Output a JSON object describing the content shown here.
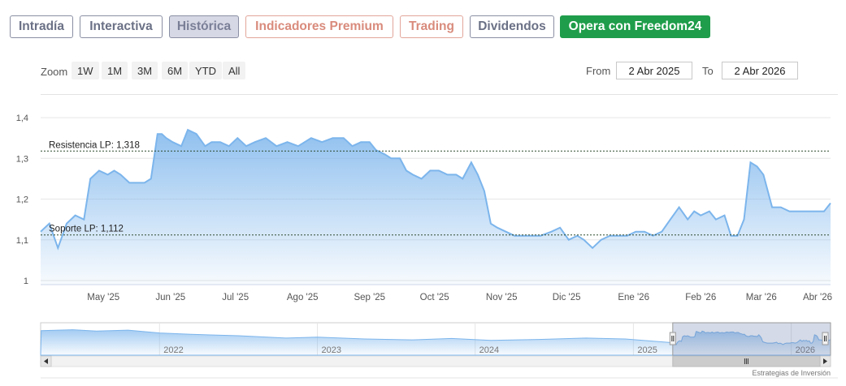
{
  "tabs": [
    {
      "label": "Intradía",
      "style": "gray"
    },
    {
      "label": "Interactiva",
      "style": "gray"
    },
    {
      "label": "Histórica",
      "style": "active"
    },
    {
      "label": "Indicadores Premium",
      "style": "red"
    },
    {
      "label": "Trading",
      "style": "red"
    },
    {
      "label": "Dividendos",
      "style": "gray"
    },
    {
      "label": "Opera con Freedom24",
      "style": "green"
    }
  ],
  "toolbar": {
    "zoom_label": "Zoom",
    "zoom_buttons": [
      "1W",
      "1M",
      "3M",
      "6M",
      "YTD",
      "All"
    ],
    "from_label": "From",
    "from_value": "2 Abr 2025",
    "to_label": "To",
    "to_value": "2 Abr 2026"
  },
  "colors": {
    "line": "#7cb5ec",
    "area_top": "#7cb5ec",
    "tab_green": "#1f9d4a",
    "tab_red": "#d98b7c",
    "tab_gray": "#6b7186"
  },
  "chart_data": {
    "type": "area",
    "y_ticks": [
      "1,4",
      "1,3",
      "1,2",
      "1,1",
      "1"
    ],
    "ylim": [
      0.99,
      1.43
    ],
    "x_ticks": [
      "May '25",
      "Jun '25",
      "Jul '25",
      "Ago '25",
      "Sep '25",
      "Oct '25",
      "Nov '25",
      "Dic '25",
      "Ene '26",
      "Feb '26",
      "Mar '26",
      "Abr '26"
    ],
    "grid": true,
    "series": [
      {
        "x": [
          "2025-04-02",
          "2025-04-06",
          "2025-04-08",
          "2025-04-10",
          "2025-04-14",
          "2025-04-18",
          "2025-04-22",
          "2025-04-25",
          "2025-04-29",
          "2025-05-03",
          "2025-05-06",
          "2025-05-09",
          "2025-05-13",
          "2025-05-16",
          "2025-05-20",
          "2025-05-23",
          "2025-05-26",
          "2025-05-28",
          "2025-05-30",
          "2025-06-02",
          "2025-06-06",
          "2025-06-09",
          "2025-06-13",
          "2025-06-17",
          "2025-06-20",
          "2025-06-24",
          "2025-06-28",
          "2025-07-02",
          "2025-07-06",
          "2025-07-10",
          "2025-07-15",
          "2025-07-20",
          "2025-07-25",
          "2025-07-30",
          "2025-08-05",
          "2025-08-10",
          "2025-08-15",
          "2025-08-20",
          "2025-08-24",
          "2025-08-28",
          "2025-09-01",
          "2025-09-04",
          "2025-09-08",
          "2025-09-11",
          "2025-09-15",
          "2025-09-18",
          "2025-09-21",
          "2025-09-25",
          "2025-09-29",
          "2025-10-03",
          "2025-10-07",
          "2025-10-11",
          "2025-10-14",
          "2025-10-18",
          "2025-10-21",
          "2025-10-24",
          "2025-10-27",
          "2025-10-30",
          "2025-11-03",
          "2025-11-07",
          "2025-11-11",
          "2025-11-15",
          "2025-11-19",
          "2025-11-24",
          "2025-11-28",
          "2025-12-02",
          "2025-12-06",
          "2025-12-09",
          "2025-12-13",
          "2025-12-17",
          "2025-12-21",
          "2025-12-25",
          "2025-12-29",
          "2026-01-02",
          "2026-01-06",
          "2026-01-10",
          "2026-01-14",
          "2026-01-18",
          "2026-01-22",
          "2026-01-26",
          "2026-01-29",
          "2026-02-01",
          "2026-02-05",
          "2026-02-08",
          "2026-02-12",
          "2026-02-15",
          "2026-02-18",
          "2026-02-21",
          "2026-02-24",
          "2026-02-27",
          "2026-03-02",
          "2026-03-06",
          "2026-03-10",
          "2026-03-14",
          "2026-03-18",
          "2026-03-22",
          "2026-03-26",
          "2026-03-30",
          "2026-04-02"
        ],
        "values": [
          1.12,
          1.14,
          1.11,
          1.08,
          1.14,
          1.16,
          1.15,
          1.25,
          1.27,
          1.26,
          1.27,
          1.26,
          1.24,
          1.24,
          1.24,
          1.25,
          1.36,
          1.36,
          1.35,
          1.34,
          1.33,
          1.37,
          1.36,
          1.33,
          1.34,
          1.34,
          1.33,
          1.35,
          1.33,
          1.34,
          1.35,
          1.33,
          1.34,
          1.33,
          1.35,
          1.34,
          1.35,
          1.35,
          1.33,
          1.34,
          1.34,
          1.32,
          1.31,
          1.3,
          1.3,
          1.27,
          1.26,
          1.25,
          1.27,
          1.27,
          1.26,
          1.26,
          1.25,
          1.29,
          1.26,
          1.22,
          1.14,
          1.13,
          1.12,
          1.11,
          1.11,
          1.11,
          1.11,
          1.12,
          1.13,
          1.1,
          1.11,
          1.1,
          1.08,
          1.1,
          1.11,
          1.11,
          1.11,
          1.12,
          1.12,
          1.11,
          1.12,
          1.15,
          1.18,
          1.15,
          1.17,
          1.16,
          1.17,
          1.15,
          1.16,
          1.11,
          1.11,
          1.15,
          1.29,
          1.28,
          1.26,
          1.18,
          1.18,
          1.17,
          1.17,
          1.17,
          1.17,
          1.17,
          1.19
        ]
      }
    ],
    "reference_lines": [
      {
        "label": "Resistencia LP: 1,318",
        "value": 1.318
      },
      {
        "label": "Soporte LP: 1,112",
        "value": 1.112
      }
    ],
    "navigator": {
      "x_ticks": [
        "2022",
        "2023",
        "2024",
        "2025",
        "2026"
      ],
      "selected_range": [
        "2025-04-02",
        "2026-04-02"
      ]
    }
  },
  "watermark": "Estrategias de Inversión"
}
